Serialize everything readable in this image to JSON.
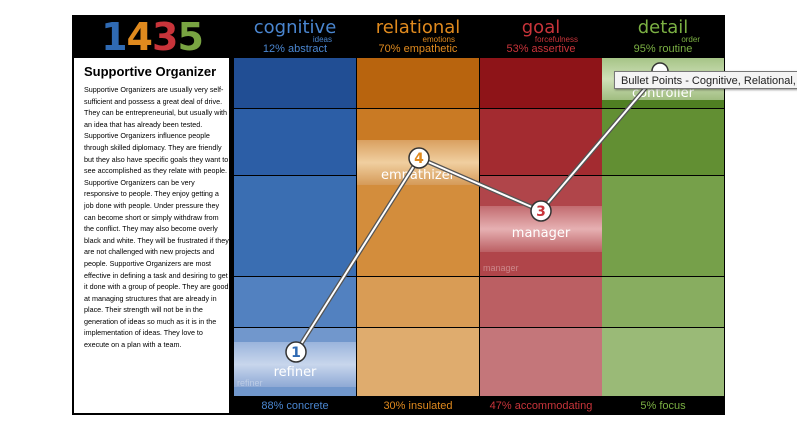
{
  "logo": {
    "digits": [
      {
        "text": "1",
        "color": "#2f6ab3"
      },
      {
        "text": "4",
        "color": "#e08a1e"
      },
      {
        "text": "3",
        "color": "#c8343a"
      },
      {
        "text": "5",
        "color": "#79a442"
      }
    ]
  },
  "profile": {
    "title": "Supportive Organizer",
    "description": "Supportive Organizers are usually very self-sufficient and possess a great deal of drive. They can be entrepreneurial, but usually with an idea that has already been tested. Supportive Organizers influence people through skilled diplomacy. They are friendly but they also have specific goals they want to see accomplished as they relate with people. Supportive Organizers can be very responsive to people. They enjoy getting a job done with people. Under pressure they can become short or simply withdraw from the conflict. They may also become overly black and white. They will be frustrated if they are not challenged with new projects and people. Supportive Organizers are most effective in defining a task and desiring to get it done with a group of people. They are good at managing structures that are already in place. Their strength will not be in the generation of ideas so much as it is in the implementation of ideas. They love to execute on a plan with a team."
  },
  "columns": [
    {
      "name": "cognitive",
      "sub": "ideas",
      "top_pct": "12% abstract",
      "bottom_pct": "88% concrete",
      "name_color": "#4a86d0",
      "footer_color": "#4a86d0",
      "node_number": "1",
      "node_label": "refiner",
      "ghost_label": "refiner"
    },
    {
      "name": "relational",
      "sub": "emotions",
      "top_pct": "70% empathetic",
      "bottom_pct": "30% insulated",
      "name_color": "#e08a1e",
      "footer_color": "#e08a1e",
      "node_number": "4",
      "node_label": "empathizer",
      "ghost_label": ""
    },
    {
      "name": "goal",
      "sub": "forcefulness",
      "top_pct": "53% assertive",
      "bottom_pct": "47% accommodating",
      "name_color": "#c8343a",
      "footer_color": "#c8343a",
      "node_number": "3",
      "node_label": "manager",
      "ghost_label": "manager"
    },
    {
      "name": "detail",
      "sub": "order",
      "top_pct": "95% routine",
      "bottom_pct": "5% focus",
      "name_color": "#7bb043",
      "footer_color": "#7bb043",
      "node_number": "",
      "node_label": "controller",
      "ghost_label": ""
    }
  ],
  "scores": [
    0.12,
    0.7,
    0.53,
    0.95
  ],
  "tooltip": {
    "text": "Bullet Points - Cognitive, Relational, Goal, Detail"
  }
}
